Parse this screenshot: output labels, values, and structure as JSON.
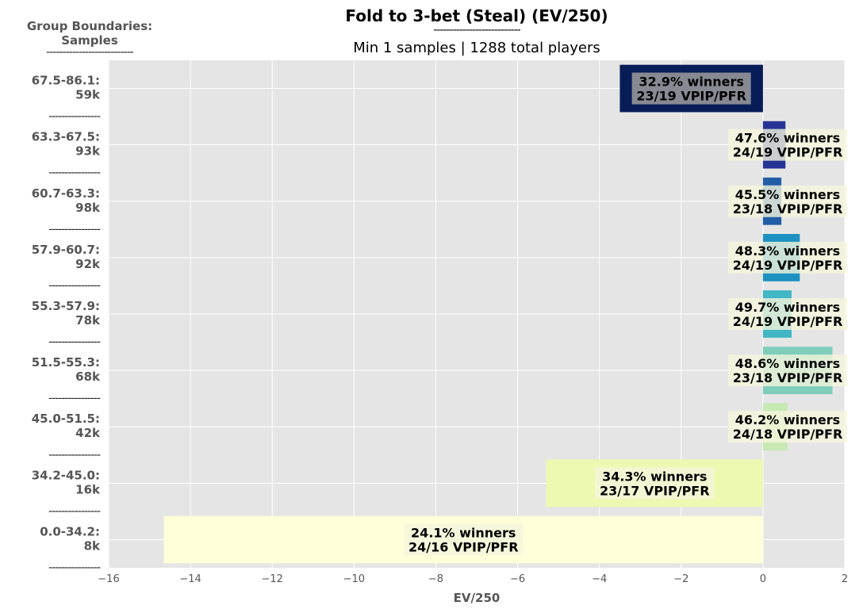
{
  "chart_data": {
    "type": "bar",
    "orientation": "horizontal",
    "title": "Fold to 3-bet (Steal) (EV/250)",
    "title_rule": "---------------------------",
    "subtitle": "Min 1 samples | 1288 total players",
    "xlabel": "EV/250",
    "group_header": [
      "Group Boundaries:",
      "Samples"
    ],
    "group_header_rule": "---------------------------",
    "separator": "----------------",
    "xlim": [
      -16,
      2
    ],
    "xticks": [
      "−16",
      "−14",
      "−12",
      "−10",
      "−8",
      "−6",
      "−4",
      "−2",
      "0",
      "2"
    ],
    "xtick_values": [
      -16,
      -14,
      -12,
      -10,
      -8,
      -6,
      -4,
      -2,
      0,
      2
    ],
    "grid": true,
    "categories": [
      {
        "range": "67.5-86.1:",
        "samples": "59k",
        "value": -3.5,
        "color": "#081d58",
        "label1": "32.9% winners",
        "label2": "23/19 VPIP/PFR"
      },
      {
        "range": "63.3-67.5:",
        "samples": "93k",
        "value": 0.55,
        "color": "#253494",
        "label1": "47.6% winners",
        "label2": "24/19 VPIP/PFR"
      },
      {
        "range": "60.7-63.3:",
        "samples": "98k",
        "value": 0.45,
        "color": "#225ea8",
        "label1": "45.5% winners",
        "label2": "23/18 VPIP/PFR"
      },
      {
        "range": "57.9-60.7:",
        "samples": "92k",
        "value": 0.9,
        "color": "#1d91c0",
        "label1": "48.3% winners",
        "label2": "24/19 VPIP/PFR"
      },
      {
        "range": "55.3-57.9:",
        "samples": "78k",
        "value": 0.7,
        "color": "#41b6c4",
        "label1": "49.7% winners",
        "label2": "24/19 VPIP/PFR"
      },
      {
        "range": "51.5-55.3:",
        "samples": "68k",
        "value": 1.7,
        "color": "#7fcdbb",
        "label1": "48.6% winners",
        "label2": "23/18 VPIP/PFR"
      },
      {
        "range": "45.0-51.5:",
        "samples": "42k",
        "value": 0.6,
        "color": "#c7e9b4",
        "label1": "46.2% winners",
        "label2": "24/18 VPIP/PFR"
      },
      {
        "range": "34.2-45.0:",
        "samples": "16k",
        "value": -5.3,
        "color": "#edf8b1",
        "label1": "34.3% winners",
        "label2": "23/17 VPIP/PFR"
      },
      {
        "range": "0.0-34.2:",
        "samples": "8k",
        "value": -14.65,
        "color": "#ffffd9",
        "label1": "24.1% winners",
        "label2": "24/16 VPIP/PFR"
      }
    ]
  }
}
